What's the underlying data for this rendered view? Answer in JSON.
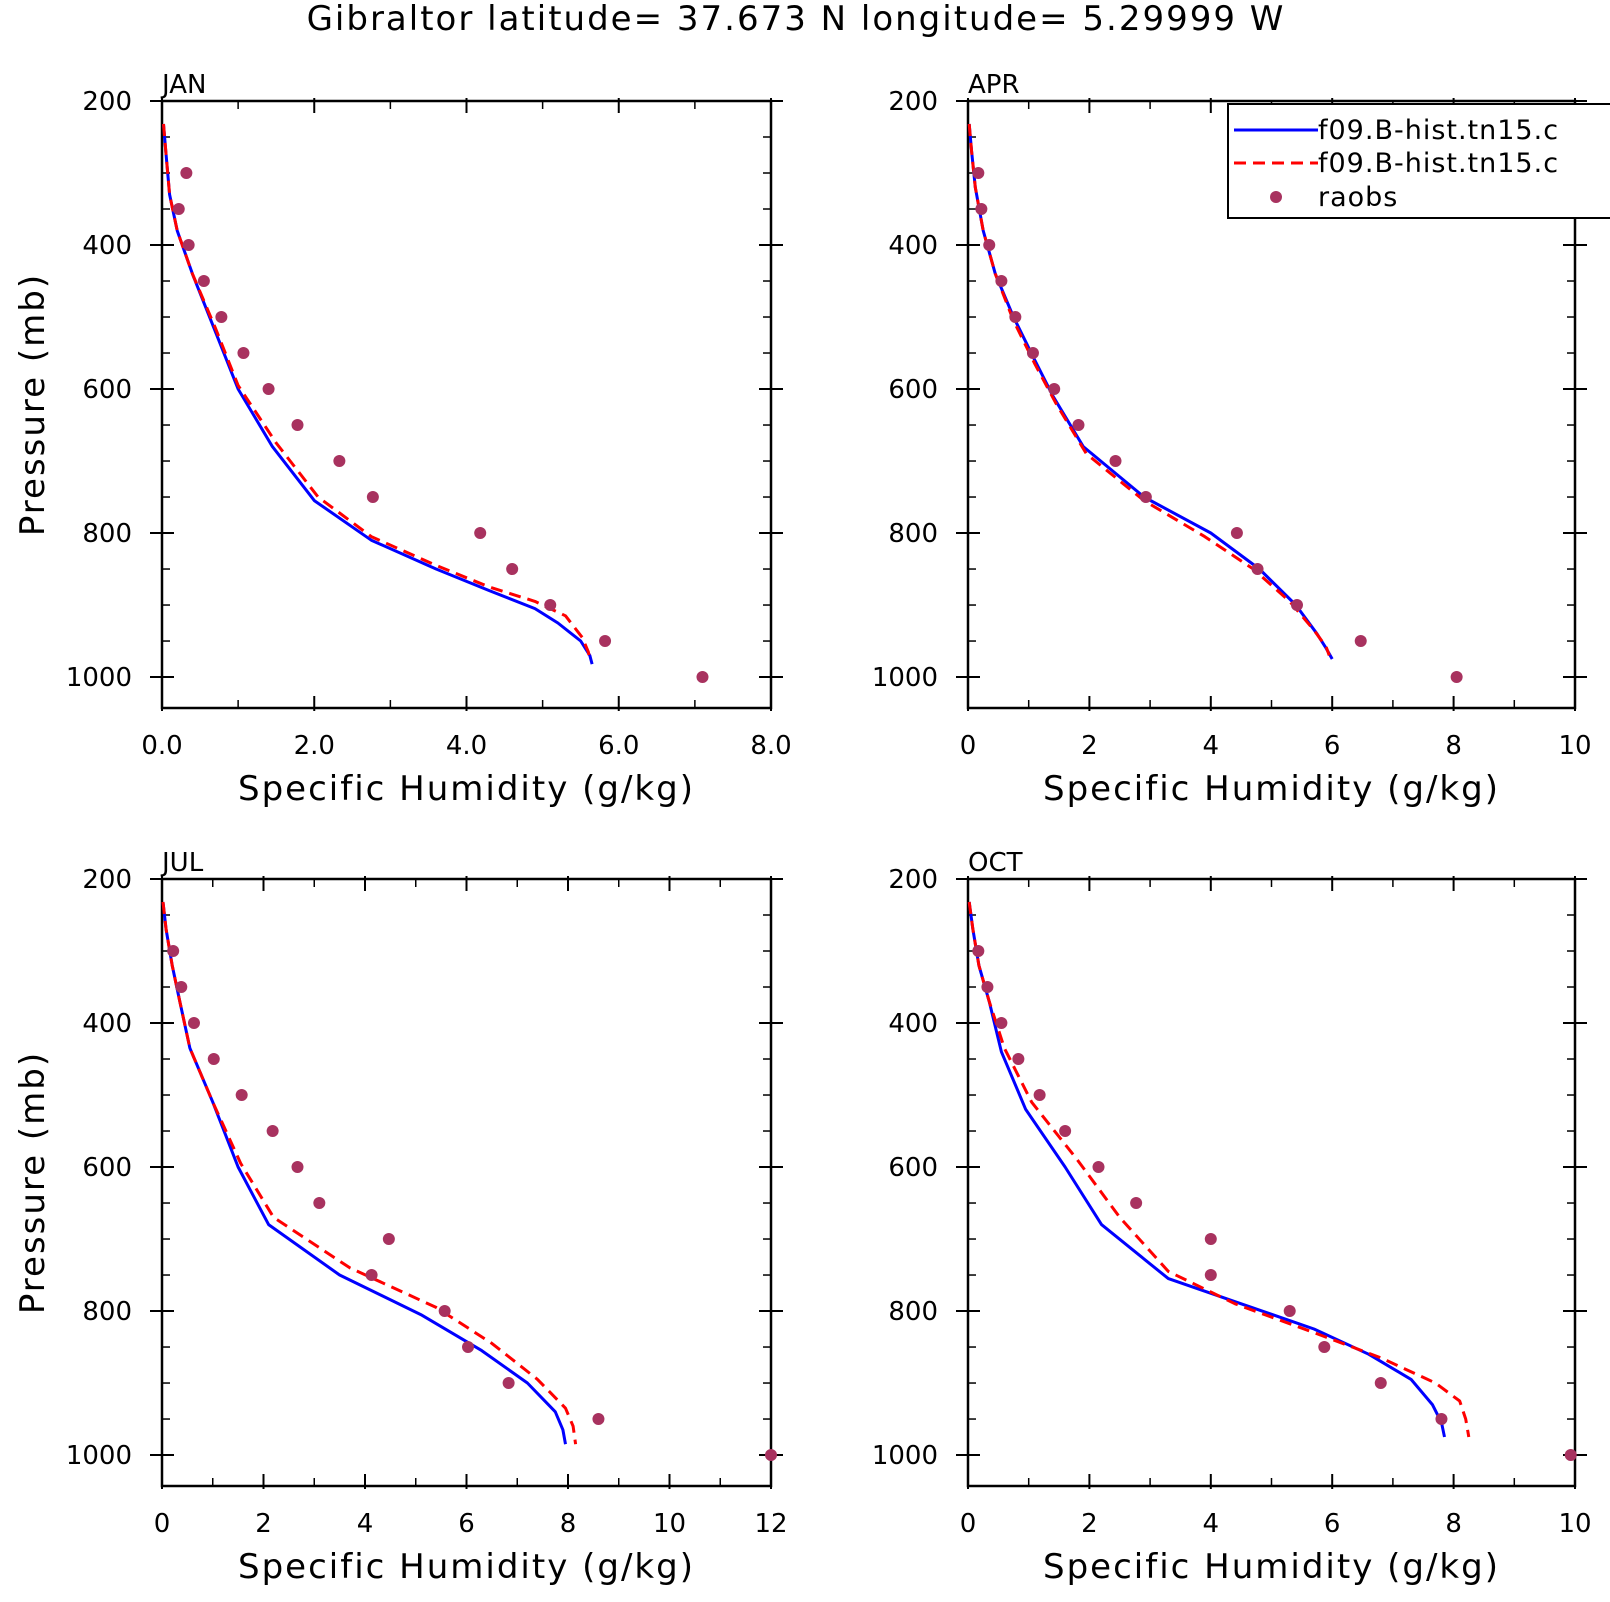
{
  "title": "Gibraltor  latitude= 37.673 N longitude= 5.29999 W",
  "legend": {
    "entries": [
      {
        "label": "f09.B-hist.tn15.c",
        "color": "#0000ff",
        "style": "solid"
      },
      {
        "label": "f09.B-hist.tn15.c",
        "color": "#ff0000",
        "style": "dashed"
      },
      {
        "label": "raobs",
        "color": "#a8325f",
        "style": "marker"
      }
    ],
    "placement": "top-right of APR panel"
  },
  "chart_data": [
    {
      "type": "line",
      "panel": "JAN",
      "xlabel": "Specific Humidity (g/kg)",
      "ylabel": "Pressure (mb)",
      "xlim": [
        0,
        8
      ],
      "ylim": [
        1000,
        200
      ],
      "y_reversed": true,
      "xticks": [
        0,
        2,
        4,
        6,
        8
      ],
      "xtick_labels": [
        "0.0",
        "2.0",
        "4.0",
        "6.0",
        "8.0"
      ],
      "yticks": [
        200,
        400,
        600,
        800,
        1000
      ],
      "ytick_labels": [
        "200",
        "400",
        "600",
        "800",
        "1000"
      ],
      "series": [
        {
          "color": "#0000ff",
          "style": "solid",
          "x": [
            0.02,
            0.05,
            0.1,
            0.2,
            0.4,
            0.7,
            1.0,
            1.45,
            2.0,
            2.75,
            3.6,
            4.3,
            4.9,
            5.2,
            5.5,
            5.62,
            5.65
          ],
          "y": [
            232,
            270,
            330,
            380,
            440,
            520,
            600,
            680,
            755,
            810,
            850,
            880,
            905,
            925,
            950,
            970,
            982
          ]
        },
        {
          "color": "#ff0000",
          "style": "dashed",
          "x": [
            0.02,
            0.05,
            0.1,
            0.2,
            0.4,
            0.7,
            1.0,
            1.5,
            2.05,
            2.75,
            3.6,
            4.3,
            4.9,
            5.3,
            5.52,
            5.6,
            5.62
          ],
          "y": [
            232,
            270,
            330,
            380,
            440,
            515,
            595,
            675,
            750,
            805,
            845,
            875,
            895,
            915,
            945,
            965,
            975
          ]
        },
        {
          "color": "#a8325f",
          "style": "marker",
          "x": [
            0.32,
            0.22,
            0.35,
            0.55,
            0.78,
            1.07,
            1.4,
            1.78,
            2.33,
            2.77,
            4.18,
            4.6,
            5.1,
            5.82,
            7.1
          ],
          "y": [
            300,
            350,
            400,
            450,
            500,
            550,
            600,
            650,
            700,
            750,
            800,
            850,
            900,
            950,
            1000
          ]
        }
      ]
    },
    {
      "type": "line",
      "panel": "APR",
      "xlabel": "Specific Humidity (g/kg)",
      "ylabel": "",
      "xlim": [
        0,
        10
      ],
      "ylim": [
        1000,
        200
      ],
      "y_reversed": true,
      "xticks": [
        0,
        2,
        4,
        6,
        8,
        10
      ],
      "xtick_labels": [
        "0",
        "2",
        "4",
        "6",
        "8",
        "10"
      ],
      "yticks": [
        200,
        400,
        600,
        800,
        1000
      ],
      "ytick_labels": [
        "200",
        "400",
        "600",
        "800",
        "1000"
      ],
      "series": [
        {
          "color": "#0000ff",
          "style": "solid",
          "x": [
            0.02,
            0.06,
            0.12,
            0.25,
            0.45,
            0.75,
            1.1,
            1.4,
            1.9,
            2.9,
            4.0,
            4.8,
            5.4,
            5.75,
            5.9,
            6.0
          ],
          "y": [
            232,
            270,
            320,
            380,
            440,
            500,
            560,
            610,
            680,
            750,
            800,
            850,
            900,
            940,
            960,
            975
          ]
        },
        {
          "color": "#ff0000",
          "style": "dashed",
          "x": [
            0.02,
            0.06,
            0.12,
            0.25,
            0.45,
            0.75,
            1.1,
            1.45,
            1.95,
            2.9,
            3.9,
            4.7,
            5.3,
            5.7,
            5.9,
            5.95
          ],
          "y": [
            232,
            270,
            320,
            380,
            440,
            505,
            565,
            620,
            690,
            755,
            805,
            850,
            895,
            935,
            958,
            970
          ]
        },
        {
          "color": "#a8325f",
          "style": "marker",
          "x": [
            0.17,
            0.22,
            0.35,
            0.55,
            0.78,
            1.07,
            1.42,
            1.82,
            2.43,
            2.93,
            4.43,
            4.77,
            5.42,
            6.47,
            8.05
          ],
          "y": [
            300,
            350,
            400,
            450,
            500,
            550,
            600,
            650,
            700,
            750,
            800,
            850,
            900,
            950,
            1000
          ]
        }
      ]
    },
    {
      "type": "line",
      "panel": "JUL",
      "xlabel": "Specific Humidity (g/kg)",
      "ylabel": "Pressure (mb)",
      "xlim": [
        0,
        12
      ],
      "ylim": [
        1000,
        200
      ],
      "y_reversed": true,
      "xticks": [
        0,
        2,
        4,
        6,
        8,
        10,
        12
      ],
      "xtick_labels": [
        "0",
        "2",
        "4",
        "6",
        "8",
        "10",
        "12"
      ],
      "yticks": [
        200,
        400,
        600,
        800,
        1000
      ],
      "ytick_labels": [
        "200",
        "400",
        "600",
        "800",
        "1000"
      ],
      "series": [
        {
          "color": "#0000ff",
          "style": "solid",
          "x": [
            0.02,
            0.08,
            0.2,
            0.35,
            0.55,
            1.0,
            1.5,
            2.1,
            3.5,
            5.1,
            6.3,
            7.2,
            7.75,
            7.9,
            7.95
          ],
          "y": [
            232,
            270,
            320,
            370,
            435,
            510,
            600,
            680,
            750,
            805,
            855,
            900,
            940,
            965,
            985
          ]
        },
        {
          "color": "#ff0000",
          "style": "dashed",
          "x": [
            0.02,
            0.08,
            0.2,
            0.35,
            0.55,
            1.0,
            1.55,
            2.2,
            3.7,
            5.4,
            6.5,
            7.4,
            7.95,
            8.1,
            8.15
          ],
          "y": [
            232,
            270,
            320,
            370,
            435,
            510,
            595,
            670,
            740,
            795,
            845,
            895,
            935,
            960,
            985
          ]
        },
        {
          "color": "#a8325f",
          "style": "marker",
          "x": [
            0.22,
            0.38,
            0.63,
            1.02,
            1.57,
            2.18,
            2.67,
            3.1,
            4.47,
            4.13,
            5.57,
            6.03,
            6.83,
            8.6,
            12.0
          ],
          "y": [
            300,
            350,
            400,
            450,
            500,
            550,
            600,
            650,
            700,
            750,
            800,
            850,
            900,
            950,
            1000
          ]
        }
      ]
    },
    {
      "type": "line",
      "panel": "OCT",
      "xlabel": "Specific Humidity (g/kg)",
      "ylabel": "",
      "xlim": [
        0,
        10
      ],
      "ylim": [
        1000,
        200
      ],
      "y_reversed": true,
      "xticks": [
        0,
        2,
        4,
        6,
        8,
        10
      ],
      "xtick_labels": [
        "0",
        "2",
        "4",
        "6",
        "8",
        "10"
      ],
      "yticks": [
        200,
        400,
        600,
        800,
        1000
      ],
      "ytick_labels": [
        "200",
        "400",
        "600",
        "800",
        "1000"
      ],
      "series": [
        {
          "color": "#0000ff",
          "style": "solid",
          "x": [
            0.02,
            0.08,
            0.18,
            0.35,
            0.55,
            0.95,
            1.6,
            2.2,
            3.3,
            4.5,
            5.7,
            6.6,
            7.3,
            7.65,
            7.8,
            7.85
          ],
          "y": [
            232,
            270,
            320,
            370,
            440,
            520,
            600,
            680,
            755,
            790,
            825,
            860,
            895,
            930,
            955,
            975
          ]
        },
        {
          "color": "#ff0000",
          "style": "dashed",
          "x": [
            0.02,
            0.08,
            0.18,
            0.35,
            0.6,
            1.05,
            1.8,
            2.5,
            3.3,
            4.4,
            5.7,
            6.8,
            7.7,
            8.1,
            8.2,
            8.25
          ],
          "y": [
            232,
            270,
            320,
            370,
            435,
            510,
            590,
            670,
            745,
            790,
            830,
            865,
            900,
            925,
            950,
            975
          ]
        },
        {
          "color": "#a8325f",
          "style": "marker",
          "x": [
            0.17,
            0.32,
            0.55,
            0.83,
            1.18,
            1.6,
            2.15,
            2.77,
            4.0,
            4.0,
            5.3,
            5.87,
            6.8,
            7.8,
            9.93
          ],
          "y": [
            300,
            350,
            400,
            450,
            500,
            550,
            600,
            650,
            700,
            750,
            800,
            850,
            900,
            950,
            1000
          ]
        }
      ]
    }
  ]
}
